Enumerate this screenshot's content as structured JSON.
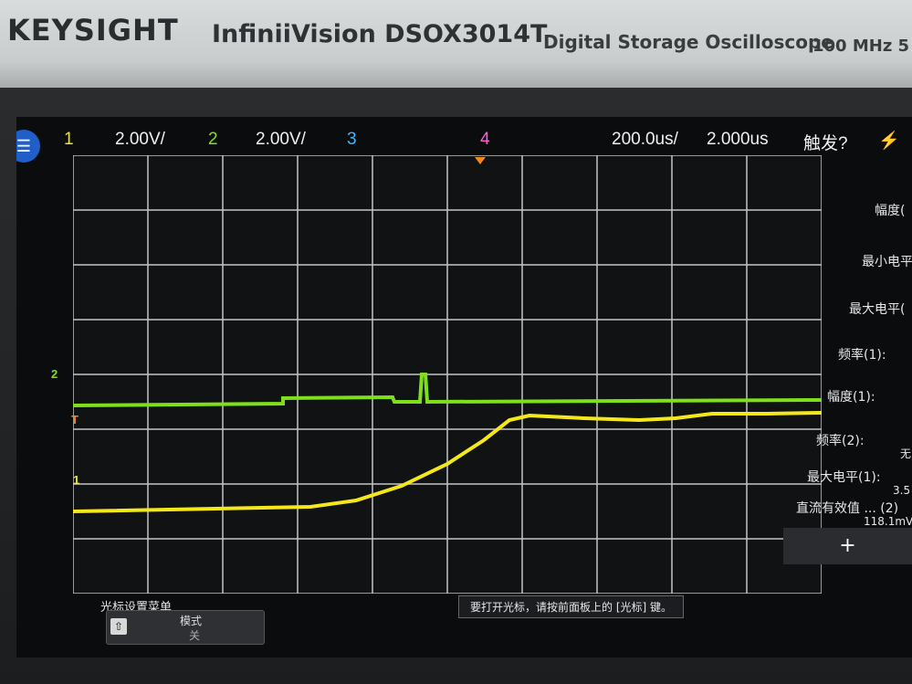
{
  "header": {
    "brand": "KEYSIGHT",
    "model": "InfiniiVision DSOX3014T",
    "description": "Digital Storage Oscilloscope",
    "bandwidth": "100 MHz 5"
  },
  "status_bar": {
    "ch1_label": "1",
    "ch1_scale": "2.00V/",
    "ch2_label": "2",
    "ch2_scale": "2.00V/",
    "ch3_label": "3",
    "ch4_label": "4",
    "time_scale": "200.0us/",
    "time_delay": "2.000us",
    "trigger_status": "触发?",
    "menu_icon": "menu-icon",
    "trigger_icon": "lightning-icon"
  },
  "markers": {
    "ch2": "2",
    "trigger": "T",
    "ch1": "1"
  },
  "colors": {
    "ch1": "#f4e81a",
    "ch2": "#7fe01a",
    "ch3": "#3fb6ff",
    "ch4": "#ff5fd2",
    "grid": "#d8d8d8"
  },
  "measurements": [
    {
      "label": "幅度(",
      "value": ""
    },
    {
      "label": "最小电平",
      "value": ""
    },
    {
      "label": "最大电平(",
      "value": ""
    },
    {
      "label": "频率(1):",
      "value": ""
    },
    {
      "label": "幅度(1):",
      "value": ""
    },
    {
      "label": "频率(2):",
      "value": "无"
    },
    {
      "label": "最大电平(1):",
      "value": "3.5"
    },
    {
      "label": "直流有效值 ... (2)",
      "value": "118.1mV"
    }
  ],
  "sidebar_plus": "+",
  "bottom": {
    "menu_title": "光标设置菜单",
    "softkey_line1": "模式",
    "softkey_line2": "关",
    "message": "要打开光标，请按前面板上的 [光标] 键。"
  }
}
